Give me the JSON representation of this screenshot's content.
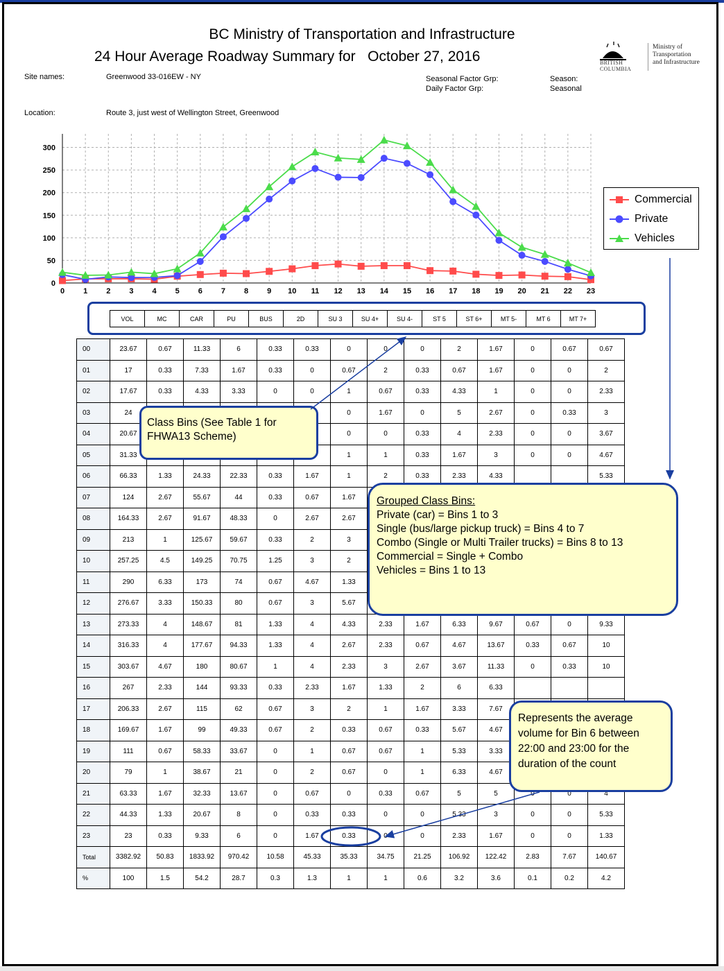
{
  "header": {
    "title_line1": "BC Ministry of Transportation and Infrastructure",
    "title_line2": "24 Hour Average Roadway Summary for",
    "date": "October 27, 2016",
    "site_names_label": "Site names:",
    "site_names_value": "Greenwood 33-016EW - NY",
    "seasonal_factor_label": "Seasonal Factor Grp:",
    "seasonal_factor_value": "Season:",
    "daily_factor_label": "Daily Factor Grp:",
    "daily_factor_value": "Seasonal",
    "location_label": "Location:",
    "location_value": "Route 3, just west of Wellington Street, Greenwood"
  },
  "logo": {
    "bc_line1": "BRITISH",
    "bc_line2": "COLUMBIA",
    "ministry_line1": "Ministry of",
    "ministry_line2": "Transportation",
    "ministry_line3": "and Infrastructure"
  },
  "chart_data": {
    "type": "line",
    "x": [
      0,
      1,
      2,
      3,
      4,
      5,
      6,
      7,
      8,
      9,
      10,
      11,
      12,
      13,
      14,
      15,
      16,
      17,
      18,
      19,
      20,
      21,
      22,
      23
    ],
    "x_ticks": [
      "0",
      "1",
      "2",
      "3",
      "4",
      "5",
      "6",
      "7",
      "8",
      "9",
      "10",
      "11",
      "12",
      "13",
      "14",
      "15",
      "16",
      "17",
      "18",
      "19",
      "20",
      "21",
      "22",
      "23"
    ],
    "y_ticks": [
      "0",
      "50",
      "100",
      "150",
      "200",
      "250",
      "300"
    ],
    "ylim": [
      0,
      330
    ],
    "grid": true,
    "legend_position": "right",
    "series": [
      {
        "name": "Commercial",
        "color": "#ff4b4b",
        "marker": "square",
        "values": [
          5.33,
          9,
          9.33,
          9.33,
          8.33,
          15,
          18.67,
          21.67,
          20.67,
          25.67,
          31.33,
          38.33,
          42,
          37,
          38.33,
          38.33,
          27.33,
          26.33,
          19.33,
          16.67,
          17.67,
          15,
          14,
          7.33
        ]
      },
      {
        "name": "Private",
        "color": "#4b4bff",
        "marker": "circle",
        "values": [
          18.33,
          8,
          13.33,
          12,
          12.33,
          16.33,
          47.67,
          102.33,
          143,
          185.67,
          225.75,
          253.33,
          234,
          233.33,
          276,
          264.67,
          239.67,
          180,
          150.33,
          94.33,
          61.33,
          47.67,
          30.33,
          15.67
        ]
      },
      {
        "name": "Vehicles",
        "color": "#4bdc4b",
        "marker": "triangle",
        "values": [
          23.67,
          17,
          17.67,
          24,
          20.67,
          31.33,
          66.33,
          124,
          164.33,
          213,
          257.25,
          290,
          276.67,
          273.33,
          316.33,
          303.67,
          267,
          206.33,
          169.67,
          111,
          79,
          63.33,
          44.33,
          23
        ]
      }
    ]
  },
  "class_bins": [
    "VOL",
    "MC",
    "CAR",
    "PU",
    "BUS",
    "2D",
    "SU 3",
    "SU 4+",
    "SU 4-",
    "ST 5",
    "ST 6+",
    "MT 5-",
    "MT 6",
    "MT 7+"
  ],
  "table_rows": [
    {
      "label": "00",
      "cells": [
        "23.67",
        "0.67",
        "11.33",
        "6",
        "0.33",
        "0.33",
        "0",
        "0",
        "0",
        "2",
        "1.67",
        "0",
        "0.67",
        "0.67"
      ]
    },
    {
      "label": "01",
      "cells": [
        "17",
        "0.33",
        "7.33",
        "1.67",
        "0.33",
        "0",
        "0.67",
        "2",
        "0.33",
        "0.67",
        "1.67",
        "0",
        "0",
        "2"
      ]
    },
    {
      "label": "02",
      "cells": [
        "17.67",
        "0.33",
        "4.33",
        "3.33",
        "0",
        "0",
        "1",
        "0.67",
        "0.33",
        "4.33",
        "1",
        "0",
        "0",
        "2.33"
      ]
    },
    {
      "label": "03",
      "cells": [
        "24",
        "",
        "",
        "",
        "",
        "",
        "0",
        "1.67",
        "0",
        "5",
        "2.67",
        "0",
        "0.33",
        "3"
      ]
    },
    {
      "label": "04",
      "cells": [
        "20.67",
        "",
        "",
        "",
        "",
        "",
        "0",
        "0",
        "0.33",
        "4",
        "2.33",
        "0",
        "0",
        "3.67"
      ]
    },
    {
      "label": "05",
      "cells": [
        "31.33",
        "",
        "",
        "",
        "",
        "",
        "1",
        "1",
        "0.33",
        "1.67",
        "3",
        "0",
        "0",
        "4.67"
      ]
    },
    {
      "label": "06",
      "cells": [
        "66.33",
        "1.33",
        "24.33",
        "22.33",
        "0.33",
        "1.67",
        "1",
        "2",
        "0.33",
        "2.33",
        "4.33",
        "",
        "",
        "5.33"
      ]
    },
    {
      "label": "07",
      "cells": [
        "124",
        "2.67",
        "55.67",
        "44",
        "0.33",
        "0.67",
        "1.67",
        "",
        "",
        "",
        "",
        "",
        "",
        ""
      ]
    },
    {
      "label": "08",
      "cells": [
        "164.33",
        "2.67",
        "91.67",
        "48.33",
        "0",
        "2.67",
        "2.67",
        "",
        "",
        "",
        "",
        "",
        "",
        ""
      ]
    },
    {
      "label": "09",
      "cells": [
        "213",
        "1",
        "125.67",
        "59.67",
        "0.33",
        "2",
        "3",
        "",
        "",
        "",
        "",
        "",
        "",
        ""
      ]
    },
    {
      "label": "10",
      "cells": [
        "257.25",
        "4.5",
        "149.25",
        "70.75",
        "1.25",
        "3",
        "2",
        "",
        "",
        "",
        "",
        "",
        "",
        ""
      ]
    },
    {
      "label": "11",
      "cells": [
        "290",
        "6.33",
        "173",
        "74",
        "0.67",
        "4.67",
        "1.33",
        "",
        "",
        "",
        "",
        "",
        "",
        ""
      ]
    },
    {
      "label": "12",
      "cells": [
        "276.67",
        "3.33",
        "150.33",
        "80",
        "0.67",
        "3",
        "5.67",
        "",
        "",
        "",
        "",
        "",
        "",
        ""
      ]
    },
    {
      "label": "13",
      "cells": [
        "273.33",
        "4",
        "148.67",
        "81",
        "1.33",
        "4",
        "4.33",
        "2.33",
        "1.67",
        "6.33",
        "9.67",
        "0.67",
        "0",
        "9.33"
      ]
    },
    {
      "label": "14",
      "cells": [
        "316.33",
        "4",
        "177.67",
        "94.33",
        "1.33",
        "4",
        "2.67",
        "2.33",
        "0.67",
        "4.67",
        "13.67",
        "0.33",
        "0.67",
        "10"
      ]
    },
    {
      "label": "15",
      "cells": [
        "303.67",
        "4.67",
        "180",
        "80.67",
        "1",
        "4",
        "2.33",
        "3",
        "2.67",
        "3.67",
        "11.33",
        "0",
        "0.33",
        "10"
      ]
    },
    {
      "label": "16",
      "cells": [
        "267",
        "2.33",
        "144",
        "93.33",
        "0.33",
        "2.33",
        "1.67",
        "1.33",
        "2",
        "6",
        "6.33",
        "",
        "",
        ""
      ]
    },
    {
      "label": "17",
      "cells": [
        "206.33",
        "2.67",
        "115",
        "62",
        "0.67",
        "3",
        "2",
        "1",
        "1.67",
        "3.33",
        "7.67",
        "",
        "",
        ""
      ]
    },
    {
      "label": "18",
      "cells": [
        "169.67",
        "1.67",
        "99",
        "49.33",
        "0.67",
        "2",
        "0.33",
        "0.67",
        "0.33",
        "5.67",
        "4.67",
        "",
        "",
        ""
      ]
    },
    {
      "label": "19",
      "cells": [
        "111",
        "0.67",
        "58.33",
        "33.67",
        "0",
        "1",
        "0.67",
        "0.67",
        "1",
        "5.33",
        "3.33",
        "",
        "",
        ""
      ]
    },
    {
      "label": "20",
      "cells": [
        "79",
        "1",
        "38.67",
        "21",
        "0",
        "2",
        "0.67",
        "0",
        "1",
        "6.33",
        "4.67",
        "",
        "",
        ""
      ]
    },
    {
      "label": "21",
      "cells": [
        "63.33",
        "1.67",
        "32.33",
        "13.67",
        "0",
        "0.67",
        "0",
        "0.33",
        "0.67",
        "5",
        "5",
        "0",
        "0",
        "4"
      ]
    },
    {
      "label": "22",
      "cells": [
        "44.33",
        "1.33",
        "20.67",
        "8",
        "0",
        "0.33",
        "0.33",
        "0",
        "0",
        "5.33",
        "3",
        "0",
        "0",
        "5.33"
      ]
    },
    {
      "label": "23",
      "cells": [
        "23",
        "0.33",
        "9.33",
        "6",
        "0",
        "1.67",
        "0.33",
        "0",
        "0",
        "2.33",
        "1.67",
        "0",
        "0",
        "1.33"
      ]
    },
    {
      "label": "Total",
      "cells": [
        "3382.92",
        "50.83",
        "1833.92",
        "970.42",
        "10.58",
        "45.33",
        "35.33",
        "34.75",
        "21.25",
        "106.92",
        "122.42",
        "2.83",
        "7.67",
        "140.67"
      ]
    },
    {
      "label": "%",
      "cells": [
        "100",
        "1.5",
        "54.2",
        "28.7",
        "0.3",
        "1.3",
        "1",
        "1",
        "0.6",
        "3.2",
        "3.6",
        "0.1",
        "0.2",
        "4.2"
      ]
    }
  ],
  "callouts": {
    "class_bins": "Class Bins (See Table 1 for FHWA13 Scheme)",
    "grouped_title": "Grouped Class Bins:",
    "grouped_lines": [
      "Private (car) = Bins 1 to 3",
      "Single (bus/large pickup truck) = Bins 4 to 7",
      "Combo (Single or Multi Trailer trucks) = Bins 8 to 13",
      "Commercial = Single + Combo",
      "Vehicles = Bins 1 to 13"
    ],
    "average_volume": "Represents the average volume for Bin 6 between 22:00 and 23:00 for the duration of the count"
  },
  "colors": {
    "callout_border": "#1a3fa0",
    "callout_fill": "#ffffcc",
    "arrow": "#1a3fa0"
  }
}
